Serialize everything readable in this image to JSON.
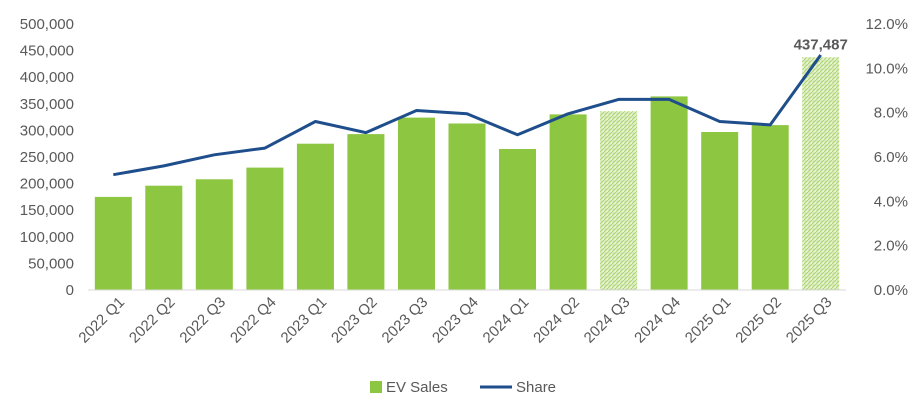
{
  "chart_data": {
    "type": "bar",
    "categories": [
      "2022 Q1",
      "2022 Q2",
      "2022 Q3",
      "2022 Q4",
      "2023 Q1",
      "2023 Q2",
      "2023 Q3",
      "2023 Q4",
      "2024 Q1",
      "2024 Q2",
      "2024 Q3",
      "2024 Q4",
      "2025 Q1",
      "2025 Q2",
      "2025 Q3"
    ],
    "series": [
      {
        "name": "EV Sales",
        "type": "bar",
        "axis": "left",
        "values": [
          175000,
          196000,
          208000,
          230000,
          275000,
          293000,
          324000,
          313000,
          265000,
          330000,
          336000,
          364000,
          297000,
          310000,
          437487
        ],
        "hatched": [
          false,
          false,
          false,
          false,
          false,
          false,
          false,
          false,
          false,
          false,
          true,
          false,
          false,
          false,
          true
        ],
        "color": "#8dc641"
      },
      {
        "name": "Share",
        "type": "line",
        "axis": "right",
        "values": [
          5.2,
          5.6,
          6.1,
          6.4,
          7.6,
          7.1,
          8.1,
          7.95,
          7.0,
          7.95,
          8.6,
          8.6,
          7.6,
          7.45,
          10.6
        ],
        "color": "#1f4e8c"
      }
    ],
    "y_left": {
      "ylim": [
        0,
        500000
      ],
      "ticks": [
        0,
        50000,
        100000,
        150000,
        200000,
        250000,
        300000,
        350000,
        400000,
        450000,
        500000
      ],
      "tick_labels": [
        "0",
        "50,000",
        "100,000",
        "150,000",
        "200,000",
        "250,000",
        "300,000",
        "350,000",
        "400,000",
        "450,000",
        "500,000"
      ]
    },
    "y_right": {
      "ylim": [
        0,
        12
      ],
      "ticks": [
        0,
        2,
        4,
        6,
        8,
        10,
        12
      ],
      "tick_labels": [
        "0.0%",
        "2.0%",
        "4.0%",
        "6.0%",
        "8.0%",
        "10.0%",
        "12.0%"
      ]
    },
    "annotations": [
      {
        "category": "2025 Q3",
        "text": "437,487"
      }
    ],
    "legend": {
      "placement": "bottom",
      "entries": [
        "EV Sales",
        "Share"
      ]
    },
    "grid": false,
    "title": "",
    "xlabel": "",
    "ylabel": ""
  }
}
